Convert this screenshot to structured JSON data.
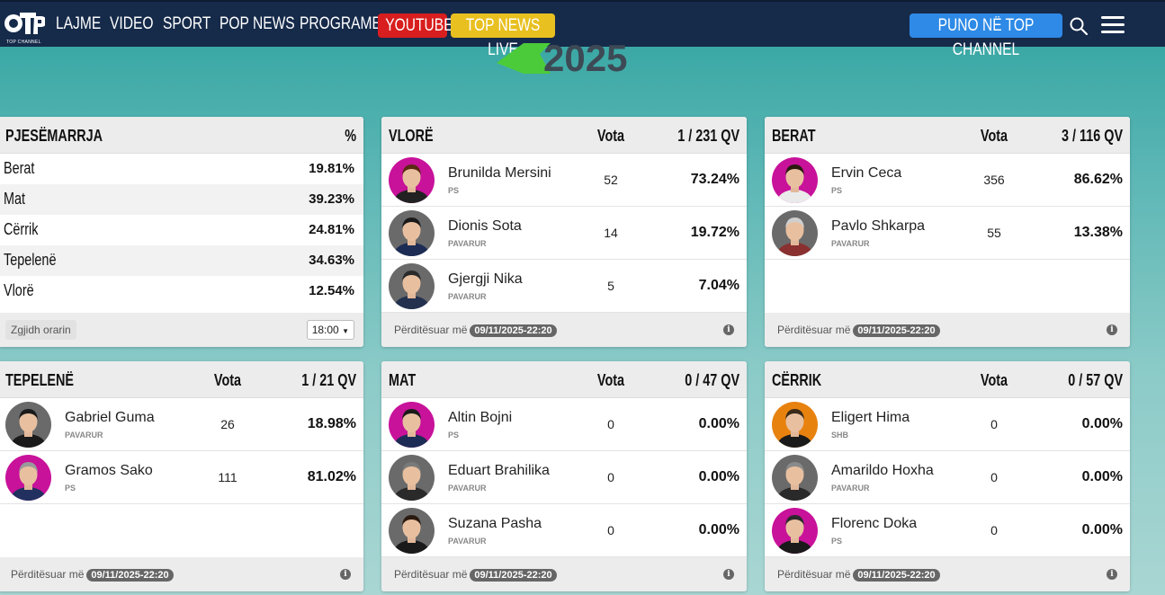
{
  "nav": {
    "logo_text": "TOP CHANNEL",
    "items": [
      "LAJME",
      "VIDEO",
      "SPORT",
      "POP NEWS",
      "PROGRAME"
    ],
    "youtube": "YOUTUBE",
    "live": "TOP NEWS LIVE",
    "puno": "PUNO NË TOP CHANNEL",
    "colors": {
      "navbar": "#162a4a",
      "youtube": "#d81e1e",
      "live": "#e8c020",
      "puno": "#2e8ae6"
    }
  },
  "banner": {
    "year": "2025"
  },
  "turnout": {
    "title": "PJESËMARRJA",
    "pct_header": "%",
    "rows": [
      {
        "name": "Berat",
        "pct": "19.81%"
      },
      {
        "name": "Mat",
        "pct": "39.23%"
      },
      {
        "name": "Cërrik",
        "pct": "24.81%"
      },
      {
        "name": "Tepelenë",
        "pct": "34.63%"
      },
      {
        "name": "Vlorë",
        "pct": "12.54%"
      }
    ],
    "time_label": "Zgjidh orarin",
    "time_value": "18:00"
  },
  "updated_label": "Përditësuar më",
  "panels": [
    {
      "title": "VLORË",
      "votes_header": "Vota",
      "qv": "1 / 231 QV",
      "updated": "09/11/2025-22:20",
      "candidates": [
        {
          "name": "Brunilda Mersini",
          "party": "PS",
          "votes": "52",
          "pct": "73.24%",
          "bg": "#c8129a",
          "hair": "#5a2a12",
          "shirt": "#222"
        },
        {
          "name": "Dionis Sota",
          "party": "PAVARUR",
          "votes": "14",
          "pct": "19.72%",
          "bg": "#6a6a6a",
          "hair": "#1a1a1a",
          "shirt": "#1c2c55"
        },
        {
          "name": "Gjergji Nika",
          "party": "PAVARUR",
          "votes": "5",
          "pct": "7.04%",
          "bg": "#6a6a6a",
          "hair": "#2a2a2a",
          "shirt": "#23314f"
        }
      ]
    },
    {
      "title": "BERAT",
      "votes_header": "Vota",
      "qv": "3 / 116 QV",
      "updated": "09/11/2025-22:20",
      "candidates": [
        {
          "name": "Ervin Ceca",
          "party": "PS",
          "votes": "356",
          "pct": "86.62%",
          "bg": "#c8129a",
          "hair": "#2a1a10",
          "shirt": "#eaeaea"
        },
        {
          "name": "Pavlo Shkarpa",
          "party": "PAVARUR",
          "votes": "55",
          "pct": "13.38%",
          "bg": "#6a6a6a",
          "hair": "#cfcfcf",
          "shirt": "#8a3030"
        }
      ]
    },
    {
      "title": "TEPELENË",
      "votes_header": "Vota",
      "qv": "1 / 21 QV",
      "updated": "09/11/2025-22:20",
      "candidates": [
        {
          "name": "Gabriel Guma",
          "party": "PAVARUR",
          "votes": "26",
          "pct": "18.98%",
          "bg": "#6a6a6a",
          "hair": "#1a1a1a",
          "shirt": "#1a1a1a"
        },
        {
          "name": "Gramos Sako",
          "party": "PS",
          "votes": "111",
          "pct": "81.02%",
          "bg": "#c8129a",
          "hair": "#9a9a9a",
          "shirt": "#223060"
        }
      ]
    },
    {
      "title": "MAT",
      "votes_header": "Vota",
      "qv": "0 / 47 QV",
      "updated": "09/11/2025-22:20",
      "candidates": [
        {
          "name": "Altin Bojni",
          "party": "PS",
          "votes": "0",
          "pct": "0.00%",
          "bg": "#c8129a",
          "hair": "#1a1a1a",
          "shirt": "#1c2c55"
        },
        {
          "name": "Eduart Brahilika",
          "party": "PAVARUR",
          "votes": "0",
          "pct": "0.00%",
          "bg": "#6a6a6a",
          "hair": "#7a7a7a",
          "shirt": "#2a2a2a"
        },
        {
          "name": "Suzana Pasha",
          "party": "PAVARUR",
          "votes": "0",
          "pct": "0.00%",
          "bg": "#6a6a6a",
          "hair": "#2a1a10",
          "shirt": "#1a1a1a"
        }
      ]
    },
    {
      "title": "CËRRIK",
      "votes_header": "Vota",
      "qv": "0 / 57 QV",
      "updated": "09/11/2025-22:20",
      "candidates": [
        {
          "name": "Eligert Hima",
          "party": "SHB",
          "votes": "0",
          "pct": "0.00%",
          "bg": "#e8820f",
          "hair": "#3a2a1a",
          "shirt": "#1a1a1a"
        },
        {
          "name": "Amarildo Hoxha",
          "party": "PAVARUR",
          "votes": "0",
          "pct": "0.00%",
          "bg": "#6a6a6a",
          "hair": "#8a8a8a",
          "shirt": "#2a2a2a"
        },
        {
          "name": "Florenc Doka",
          "party": "PS",
          "votes": "0",
          "pct": "0.00%",
          "bg": "#c8129a",
          "hair": "#2a2a2a",
          "shirt": "#1a1a1a"
        }
      ]
    }
  ]
}
